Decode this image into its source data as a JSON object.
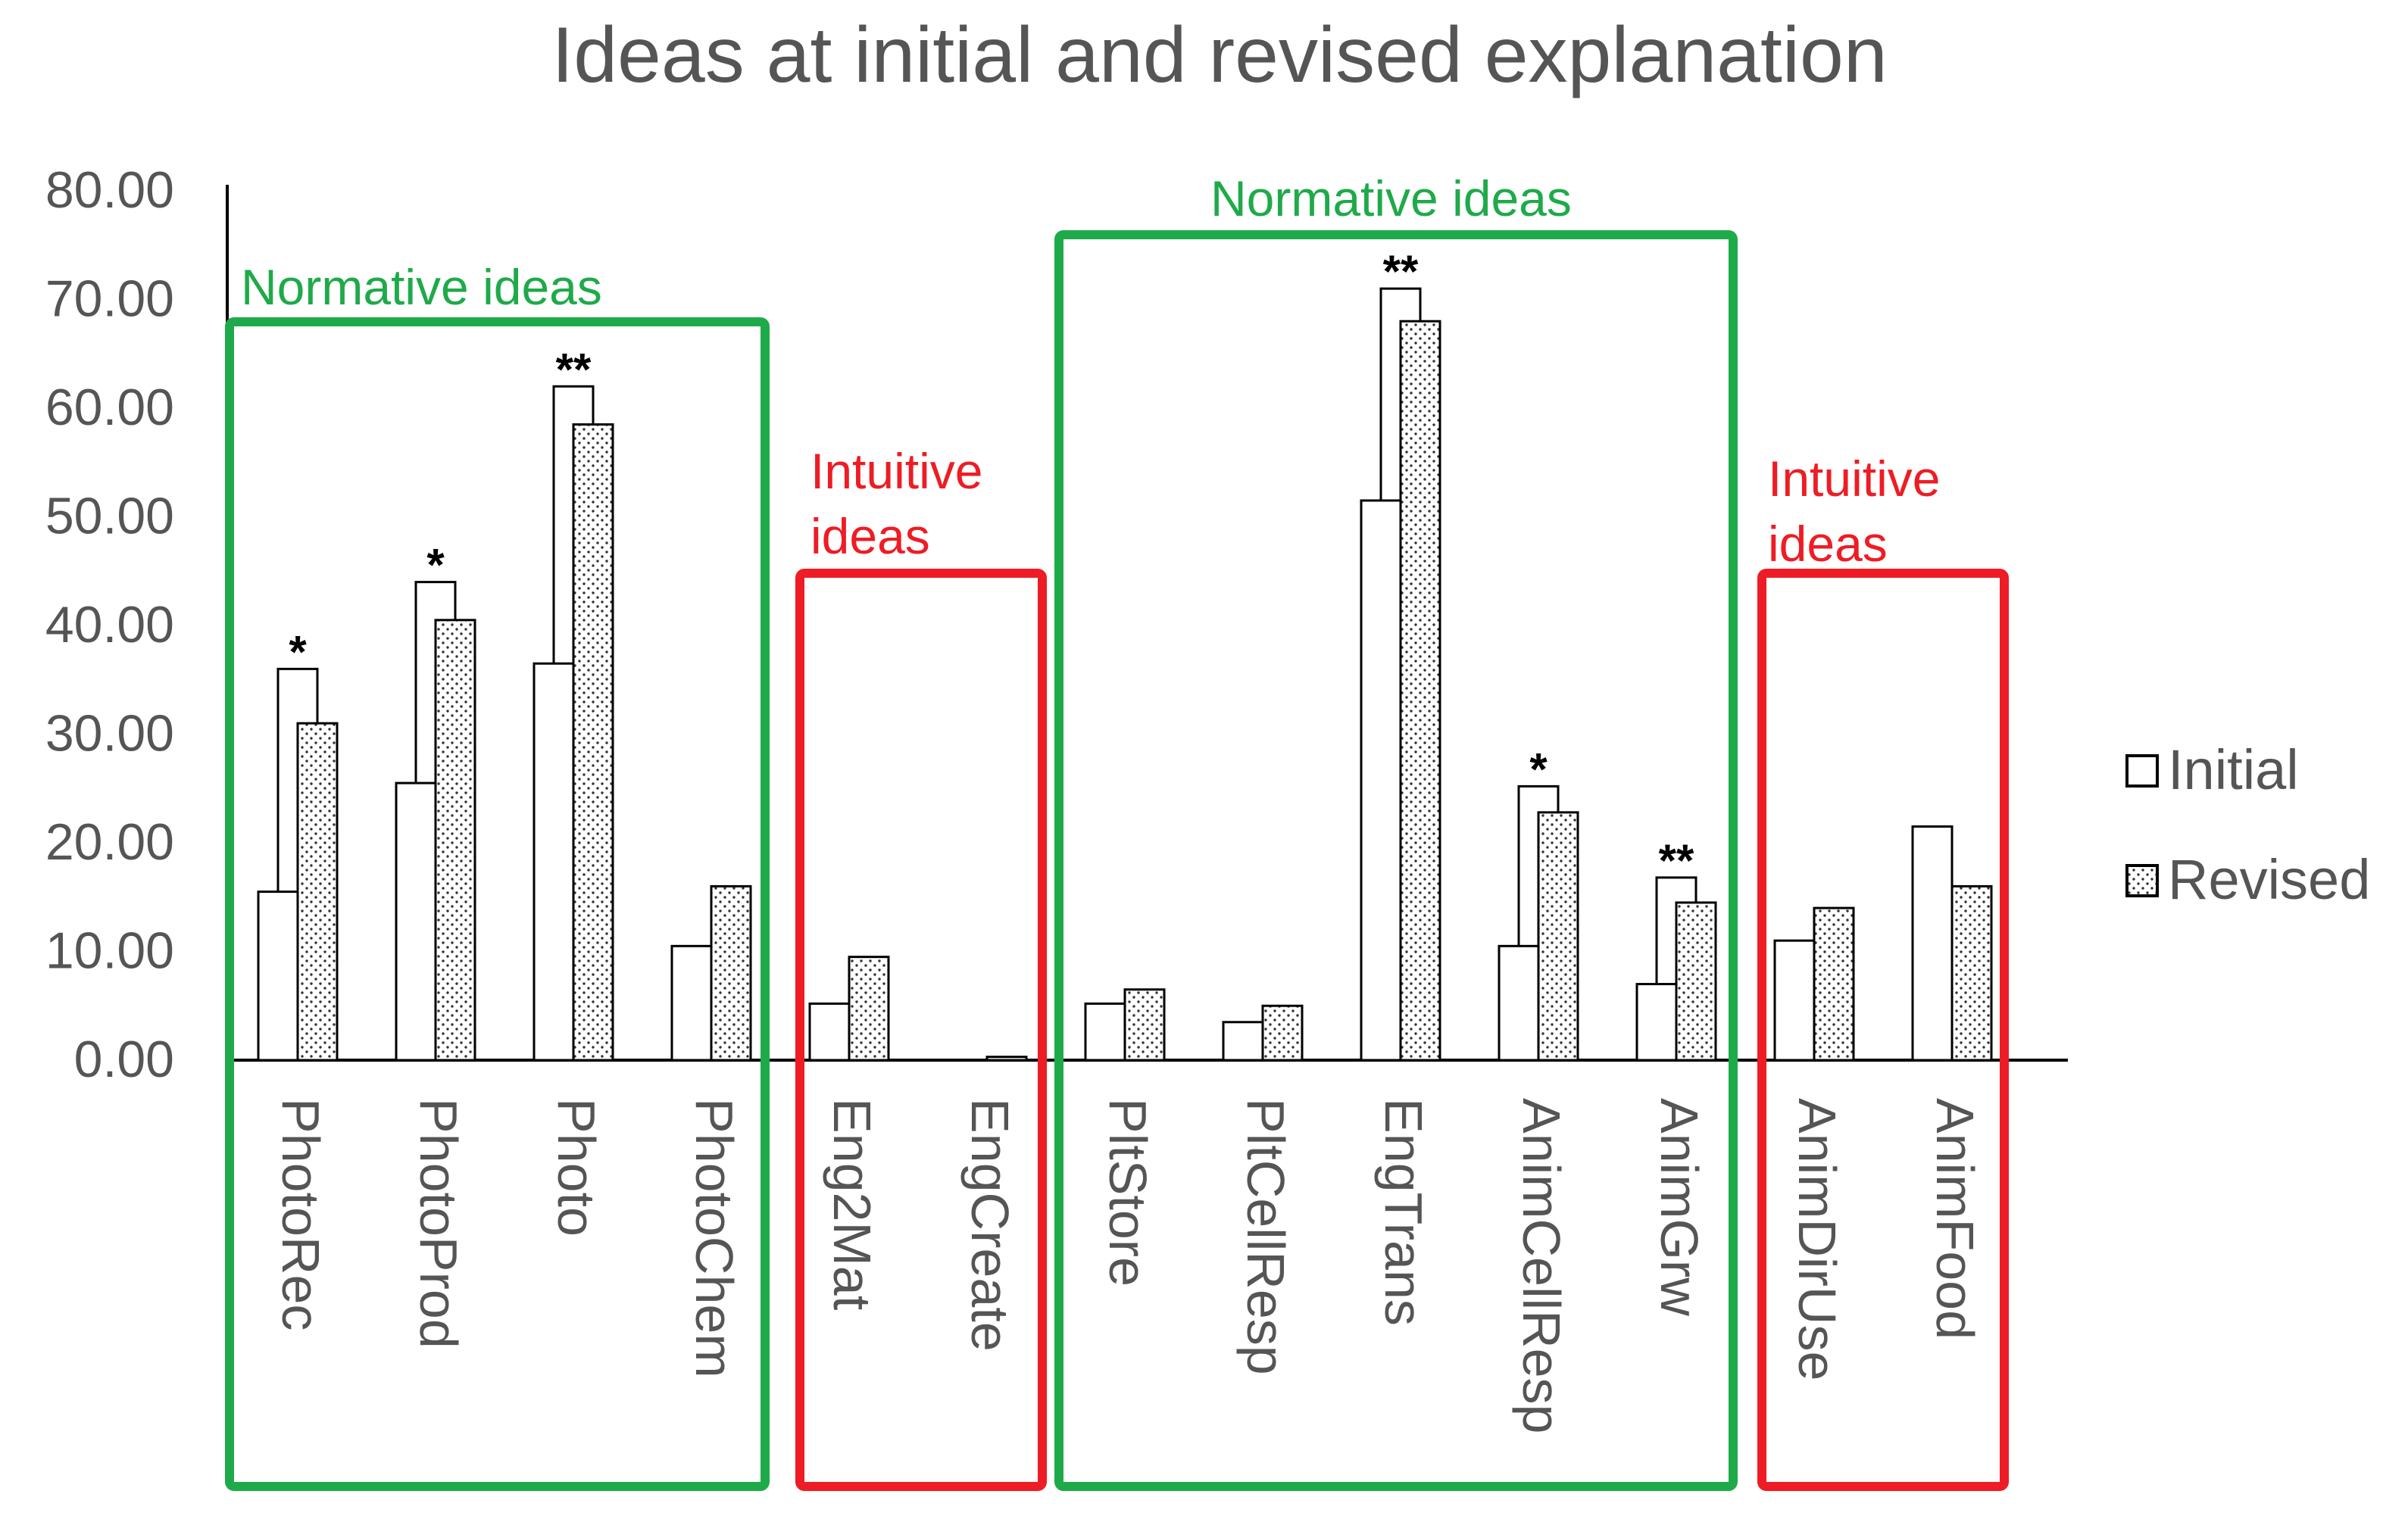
{
  "chart_data": {
    "type": "bar",
    "title": "Ideas at initial and revised explanation",
    "xlabel": "",
    "ylabel": "",
    "ylim": [
      0,
      80
    ],
    "yticks": [
      "0.00",
      "10.00",
      "20.00",
      "30.00",
      "40.00",
      "50.00",
      "60.00",
      "70.00",
      "80.00"
    ],
    "grid": false,
    "legend_position": "right",
    "categories": [
      "PhotoRec",
      "PhotoProd",
      "Photo",
      "PhotoChem",
      "Eng2Mat",
      "EngCreate",
      "PltStore",
      "PltCellResp",
      "EngTrans",
      "AnimCellResp",
      "AnimGrw",
      "AnimDirUse",
      "AnimFood"
    ],
    "series": [
      {
        "name": "Initial",
        "pattern": "solid-white",
        "values": [
          15.5,
          25.5,
          36.5,
          10.5,
          5.2,
          0,
          5.2,
          3.5,
          51.5,
          10.5,
          7.0,
          11.0,
          21.5
        ]
      },
      {
        "name": "Revised",
        "pattern": "dotted",
        "values": [
          31.0,
          40.5,
          58.5,
          16.0,
          9.5,
          0.3,
          6.5,
          5.0,
          68.0,
          22.8,
          14.5,
          14.0,
          16.0
        ]
      }
    ],
    "significance": [
      {
        "category": "PhotoRec",
        "label": "*",
        "bracket_top": 36.0
      },
      {
        "category": "PhotoProd",
        "label": "*",
        "bracket_top": 44.0
      },
      {
        "category": "Photo",
        "label": "**",
        "bracket_top": 62.0
      },
      {
        "category": "EngTrans",
        "label": "**",
        "bracket_top": 71.0
      },
      {
        "category": "AnimCellResp",
        "label": "*",
        "bracket_top": 25.2
      },
      {
        "category": "AnimGrw",
        "label": "**",
        "bracket_top": 16.8
      }
    ],
    "groups": [
      {
        "label_lines": [
          "Normative ideas"
        ],
        "color": "#1faa4a",
        "from": 0,
        "to": 3
      },
      {
        "label_lines": [
          "Intuitive",
          "ideas"
        ],
        "color": "#ee1c24",
        "from": 4,
        "to": 5
      },
      {
        "label_lines": [
          "Normative ideas"
        ],
        "color": "#1faa4a",
        "from": 6,
        "to": 10
      },
      {
        "label_lines": [
          "Intuitive",
          "ideas"
        ],
        "color": "#ee1c24",
        "from": 11,
        "to": 12
      }
    ]
  }
}
